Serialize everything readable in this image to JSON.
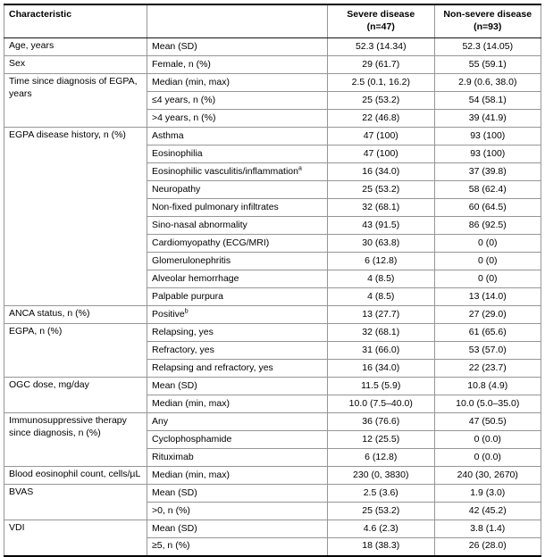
{
  "table": {
    "header": {
      "characteristic": "Characteristic",
      "spacer": "",
      "severe": "Severe disease\n(n=47)",
      "nonsevere": "Non-severe disease\n(n=93)"
    },
    "groups": [
      {
        "label": "Age, years",
        "rows": [
          {
            "item": "Mean (SD)",
            "severe": "52.3 (14.34)",
            "nonsevere": "52.3 (14.05)"
          }
        ]
      },
      {
        "label": "Sex",
        "rows": [
          {
            "item": "Female, n (%)",
            "severe": "29 (61.7)",
            "nonsevere": "55 (59.1)"
          }
        ]
      },
      {
        "label": "Time since diagnosis of EGPA, years",
        "rows": [
          {
            "item": "Median (min, max)",
            "severe": "2.5 (0.1, 16.2)",
            "nonsevere": "2.9 (0.6, 38.0)"
          },
          {
            "item": "≤4 years, n (%)",
            "severe": "25 (53.2)",
            "nonsevere": "54 (58.1)"
          },
          {
            "item": ">4 years, n (%)",
            "severe": "22 (46.8)",
            "nonsevere": "39 (41.9)"
          }
        ]
      },
      {
        "label": "EGPA disease history, n (%)",
        "rows": [
          {
            "item": "Asthma",
            "severe": "47 (100)",
            "nonsevere": "93 (100)"
          },
          {
            "item": "Eosinophilia",
            "severe": "47 (100)",
            "nonsevere": "93 (100)"
          },
          {
            "item": "Eosinophilic vasculitis/inflammation",
            "sup": "a",
            "severe": "16 (34.0)",
            "nonsevere": "37 (39.8)"
          },
          {
            "item": "Neuropathy",
            "severe": "25 (53.2)",
            "nonsevere": "58 (62.4)"
          },
          {
            "item": "Non-fixed pulmonary infiltrates",
            "severe": "32 (68.1)",
            "nonsevere": "60 (64.5)"
          },
          {
            "item": "Sino-nasal abnormality",
            "severe": "43 (91.5)",
            "nonsevere": "86 (92.5)"
          },
          {
            "item": "Cardiomyopathy (ECG/MRI)",
            "severe": "30 (63.8)",
            "nonsevere": "0 (0)"
          },
          {
            "item": "Glomerulonephritis",
            "severe": "6 (12.8)",
            "nonsevere": "0 (0)"
          },
          {
            "item": "Alveolar hemorrhage",
            "severe": "4 (8.5)",
            "nonsevere": "0 (0)"
          },
          {
            "item": "Palpable purpura",
            "severe": "4 (8.5)",
            "nonsevere": "13 (14.0)"
          }
        ]
      },
      {
        "label": "ANCA status, n (%)",
        "rows": [
          {
            "item": "Positive",
            "sup": "b",
            "severe": "13 (27.7)",
            "nonsevere": "27 (29.0)"
          }
        ]
      },
      {
        "label": "EGPA, n (%)",
        "rows": [
          {
            "item": "Relapsing, yes",
            "severe": "32 (68.1)",
            "nonsevere": "61 (65.6)"
          },
          {
            "item": "Refractory, yes",
            "severe": "31 (66.0)",
            "nonsevere": "53 (57.0)"
          },
          {
            "item": "Relapsing and refractory, yes",
            "severe": "16 (34.0)",
            "nonsevere": "22 (23.7)"
          }
        ]
      },
      {
        "label": "OGC dose, mg/day",
        "rows": [
          {
            "item": "Mean (SD)",
            "severe": "11.5 (5.9)",
            "nonsevere": "10.8 (4.9)"
          },
          {
            "item": "Median (min, max)",
            "severe": "10.0 (7.5–40.0)",
            "nonsevere": "10.0 (5.0–35.0)"
          }
        ]
      },
      {
        "label": "Immunosuppressive therapy since diagnosis, n (%)",
        "rows": [
          {
            "item": "Any",
            "severe": "36 (76.6)",
            "nonsevere": "47 (50.5)"
          },
          {
            "item": "Cyclophosphamide",
            "severe": "12 (25.5)",
            "nonsevere": "0 (0.0)"
          },
          {
            "item": "Rituximab",
            "severe": "6 (12.8)",
            "nonsevere": "0 (0.0)"
          }
        ]
      },
      {
        "label": "Blood eosinophil count, cells/µL",
        "rows": [
          {
            "item": "Median (min, max)",
            "severe": "230 (0, 3830)",
            "nonsevere": "240 (30, 2670)"
          }
        ]
      },
      {
        "label": "BVAS",
        "rows": [
          {
            "item": "Mean (SD)",
            "severe": "2.5 (3.6)",
            "nonsevere": "1.9 (3.0)"
          },
          {
            "item": ">0, n (%)",
            "severe": "25 (53.2)",
            "nonsevere": "42 (45.2)"
          }
        ]
      },
      {
        "label": "VDI",
        "rows": [
          {
            "item": "Mean (SD)",
            "severe": "4.6 (2.3)",
            "nonsevere": "3.8 (1.4)"
          },
          {
            "item": "≥5, n (%)",
            "severe": "18 (38.3)",
            "nonsevere": "26 (28.0)"
          }
        ]
      }
    ]
  }
}
